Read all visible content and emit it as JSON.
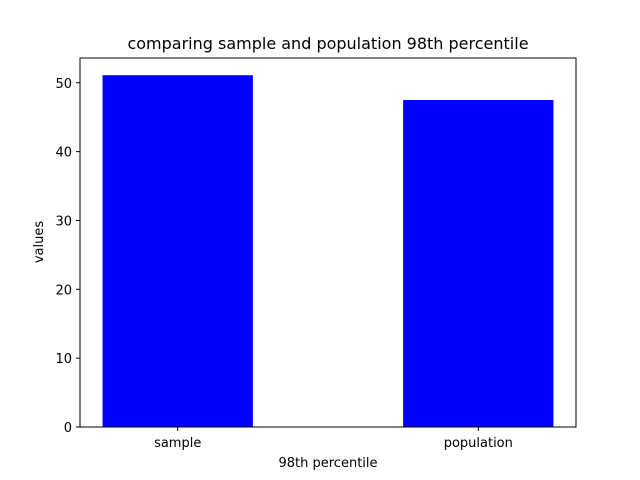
{
  "chart_data": {
    "type": "bar",
    "title": "comparing sample and population 98th percentile",
    "xlabel": "98th percentile",
    "ylabel": "values",
    "categories": [
      "sample",
      "population"
    ],
    "values": [
      51.1,
      47.5
    ],
    "ylim": [
      0,
      53.6
    ],
    "yticks": [
      0,
      10,
      20,
      30,
      40,
      50
    ],
    "bar_color": "#0000ff",
    "grid": false,
    "legend": "none"
  }
}
